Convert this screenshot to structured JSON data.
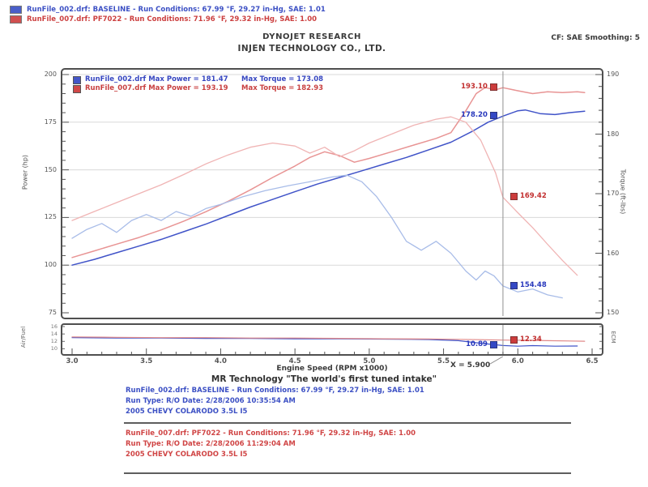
{
  "header": {
    "legend_top": [
      {
        "label": "RunFile_002.drf: BASELINE -  Run Conditions: 67.99 °F, 29.27 in-Hg, SAE: 1.01"
      },
      {
        "label": "RunFile_007.drf: PF7022 -  Run Conditions: 71.96 °F, 29.32 in-Hg, SAE: 1.00"
      }
    ],
    "title_line1": "DYNOJET RESEARCH",
    "title_line2": "INJEN TECHNOLOGY CO., LTD.",
    "cf_label": "CF: SAE  Smoothing: 5"
  },
  "chart_data": {
    "type": "line",
    "xlabel": "Engine Speed (RPM x1000)",
    "xlim": [
      3.0,
      6.5
    ],
    "x_ticks": [
      3.0,
      3.5,
      4.0,
      4.5,
      5.0,
      5.5,
      6.0,
      6.5
    ],
    "axes": {
      "power": {
        "label": "Power (hp)",
        "lim": [
          75,
          200
        ],
        "ticks": [
          75,
          100,
          125,
          150,
          175,
          200
        ],
        "side": "left"
      },
      "torque": {
        "label": "Torque (ft-lbs)",
        "lim": [
          150,
          190
        ],
        "ticks": [
          150,
          160,
          170,
          180,
          190
        ],
        "side": "right"
      },
      "afr": {
        "label": "Air/Fuel",
        "right_label": "ECM",
        "lim": [
          9,
          16
        ],
        "ticks": [
          16,
          14,
          12,
          10
        ],
        "side": "left"
      }
    },
    "palette": {
      "blue": "#4053c8",
      "blue_light": "#a8bce8",
      "red": "#e89494",
      "red_light": "#f0b4b4",
      "afr_blue": "#4053c8",
      "afr_red": "#e08888",
      "grid": "#d9d9d9",
      "cursor": "#909090"
    },
    "legend": [
      {
        "name": "RunFile_002.drf",
        "power_text": "RunFile_002.drf Max Power = 181.47",
        "torque_text": "Max Torque = 173.08",
        "color": "blue"
      },
      {
        "name": "RunFile_007.drf",
        "power_text": "RunFile_007.drf Max Power = 193.19",
        "torque_text": "Max Torque = 182.93",
        "color": "red"
      }
    ],
    "cursor": {
      "x": 5.9,
      "label": "X = 5.900"
    },
    "readouts": [
      {
        "text": "193.10",
        "value": 193.1,
        "axis": "power",
        "chart": "main",
        "color": "red",
        "side": "left"
      },
      {
        "text": "178.20",
        "value": 178.2,
        "axis": "power",
        "chart": "main",
        "color": "blue",
        "side": "left"
      },
      {
        "text": "169.42",
        "value": 169.42,
        "axis": "torque",
        "chart": "main",
        "color": "red",
        "side": "right"
      },
      {
        "text": "154.48",
        "value": 154.48,
        "axis": "torque",
        "chart": "main",
        "color": "blue",
        "side": "right"
      },
      {
        "text": "10.89",
        "value": 10.89,
        "axis": "afr",
        "chart": "strip",
        "color": "blue",
        "side": "left"
      },
      {
        "text": "12.34",
        "value": 12.34,
        "axis": "afr",
        "chart": "strip",
        "color": "red",
        "side": "right"
      }
    ],
    "series": [
      {
        "name": "baseline_power",
        "axis": "power",
        "chart": "main",
        "color": "#4053c8",
        "width": 1.5,
        "points": [
          [
            3.0,
            100
          ],
          [
            3.15,
            103
          ],
          [
            3.3,
            106.5
          ],
          [
            3.45,
            110
          ],
          [
            3.6,
            113.5
          ],
          [
            3.75,
            117.5
          ],
          [
            3.9,
            121.5
          ],
          [
            4.05,
            126
          ],
          [
            4.2,
            130.5
          ],
          [
            4.35,
            134.5
          ],
          [
            4.5,
            138.5
          ],
          [
            4.65,
            142.5
          ],
          [
            4.8,
            146
          ],
          [
            4.95,
            149.5
          ],
          [
            5.1,
            153
          ],
          [
            5.25,
            156.5
          ],
          [
            5.4,
            160.5
          ],
          [
            5.55,
            164.5
          ],
          [
            5.7,
            170.5
          ],
          [
            5.8,
            175
          ],
          [
            5.9,
            178.2
          ],
          [
            6.0,
            181
          ],
          [
            6.05,
            181.4
          ],
          [
            6.15,
            179.5
          ],
          [
            6.25,
            179
          ],
          [
            6.35,
            180
          ],
          [
            6.45,
            180.8
          ]
        ]
      },
      {
        "name": "injen_power",
        "axis": "power",
        "chart": "main",
        "color": "#e89494",
        "width": 1.5,
        "points": [
          [
            3.0,
            104
          ],
          [
            3.15,
            107.5
          ],
          [
            3.3,
            111
          ],
          [
            3.45,
            114.5
          ],
          [
            3.6,
            118.5
          ],
          [
            3.75,
            123
          ],
          [
            3.9,
            128
          ],
          [
            4.05,
            133.5
          ],
          [
            4.2,
            139.5
          ],
          [
            4.35,
            146
          ],
          [
            4.5,
            152
          ],
          [
            4.6,
            156.5
          ],
          [
            4.7,
            159.5
          ],
          [
            4.8,
            157.5
          ],
          [
            4.9,
            154
          ],
          [
            5.0,
            156
          ],
          [
            5.15,
            159.5
          ],
          [
            5.3,
            163
          ],
          [
            5.45,
            166.5
          ],
          [
            5.55,
            169.5
          ],
          [
            5.65,
            181
          ],
          [
            5.72,
            190
          ],
          [
            5.78,
            193.2
          ],
          [
            5.85,
            192
          ],
          [
            5.9,
            193.1
          ],
          [
            6.0,
            191.5
          ],
          [
            6.1,
            190
          ],
          [
            6.2,
            191
          ],
          [
            6.3,
            190.5
          ],
          [
            6.4,
            191
          ],
          [
            6.45,
            190.5
          ]
        ]
      },
      {
        "name": "baseline_torque",
        "axis": "torque",
        "chart": "main",
        "color": "#a8bce8",
        "width": 1.3,
        "points": [
          [
            3.0,
            162.5
          ],
          [
            3.1,
            164
          ],
          [
            3.2,
            165
          ],
          [
            3.3,
            163.5
          ],
          [
            3.4,
            165.5
          ],
          [
            3.5,
            166.5
          ],
          [
            3.6,
            165.5
          ],
          [
            3.7,
            167
          ],
          [
            3.8,
            166.2
          ],
          [
            3.9,
            167.5
          ],
          [
            4.0,
            168.2
          ],
          [
            4.15,
            169.5
          ],
          [
            4.3,
            170.5
          ],
          [
            4.45,
            171.3
          ],
          [
            4.6,
            172
          ],
          [
            4.75,
            172.8
          ],
          [
            4.85,
            173.1
          ],
          [
            4.95,
            172
          ],
          [
            5.05,
            169.5
          ],
          [
            5.15,
            166
          ],
          [
            5.25,
            162
          ],
          [
            5.35,
            160.5
          ],
          [
            5.45,
            162
          ],
          [
            5.55,
            160
          ],
          [
            5.65,
            157
          ],
          [
            5.72,
            155.5
          ],
          [
            5.78,
            157
          ],
          [
            5.84,
            156.2
          ],
          [
            5.9,
            154.5
          ],
          [
            6.0,
            153.5
          ],
          [
            6.1,
            154
          ],
          [
            6.2,
            153
          ],
          [
            6.3,
            152.5
          ]
        ]
      },
      {
        "name": "injen_torque",
        "axis": "torque",
        "chart": "main",
        "color": "#f0b4b4",
        "width": 1.3,
        "points": [
          [
            3.0,
            165.5
          ],
          [
            3.15,
            167
          ],
          [
            3.3,
            168.5
          ],
          [
            3.45,
            170
          ],
          [
            3.6,
            171.5
          ],
          [
            3.75,
            173.2
          ],
          [
            3.9,
            175
          ],
          [
            4.05,
            176.5
          ],
          [
            4.2,
            177.8
          ],
          [
            4.35,
            178.5
          ],
          [
            4.5,
            178
          ],
          [
            4.6,
            176.8
          ],
          [
            4.7,
            177.8
          ],
          [
            4.8,
            176.2
          ],
          [
            4.9,
            177.2
          ],
          [
            5.0,
            178.5
          ],
          [
            5.15,
            180
          ],
          [
            5.3,
            181.5
          ],
          [
            5.45,
            182.5
          ],
          [
            5.55,
            182.9
          ],
          [
            5.65,
            182
          ],
          [
            5.75,
            179
          ],
          [
            5.85,
            173.5
          ],
          [
            5.9,
            169.4
          ],
          [
            6.0,
            166.8
          ],
          [
            6.1,
            164.3
          ],
          [
            6.2,
            161.5
          ],
          [
            6.3,
            158.8
          ],
          [
            6.4,
            156.3
          ]
        ]
      },
      {
        "name": "baseline_afr",
        "axis": "afr",
        "chart": "strip",
        "color": "#4053c8",
        "width": 1.2,
        "points": [
          [
            3.0,
            13.0
          ],
          [
            3.3,
            12.9
          ],
          [
            3.6,
            12.9
          ],
          [
            3.9,
            12.8
          ],
          [
            4.2,
            12.8
          ],
          [
            4.5,
            12.7
          ],
          [
            4.8,
            12.7
          ],
          [
            5.1,
            12.6
          ],
          [
            5.4,
            12.5
          ],
          [
            5.6,
            12.2
          ],
          [
            5.75,
            11.5
          ],
          [
            5.9,
            10.89
          ],
          [
            6.0,
            10.7
          ],
          [
            6.1,
            10.85
          ],
          [
            6.25,
            10.7
          ],
          [
            6.4,
            10.75
          ]
        ]
      },
      {
        "name": "injen_afr",
        "axis": "afr",
        "chart": "strip",
        "color": "#e08888",
        "width": 1.2,
        "points": [
          [
            3.0,
            13.2
          ],
          [
            3.3,
            13.1
          ],
          [
            3.6,
            13.0
          ],
          [
            3.9,
            13.0
          ],
          [
            4.2,
            12.9
          ],
          [
            4.5,
            12.9
          ],
          [
            4.8,
            12.8
          ],
          [
            5.1,
            12.7
          ],
          [
            5.4,
            12.65
          ],
          [
            5.6,
            12.55
          ],
          [
            5.75,
            12.45
          ],
          [
            5.9,
            12.34
          ],
          [
            6.05,
            12.3
          ],
          [
            6.2,
            12.2
          ],
          [
            6.35,
            12.1
          ],
          [
            6.45,
            12.05
          ]
        ]
      }
    ]
  },
  "footer": {
    "tagline": "MR Technology \"The world's first tuned intake\"",
    "runs": [
      {
        "color": "blue",
        "lines": [
          "RunFile_002.drf: BASELINE -  Run Conditions: 67.99 °F, 29.27 in-Hg, SAE: 1.01",
          "Run Type: R/O  Date: 2/28/2006 10:35:54 AM",
          "2005 CHEVY COLARODO 3.5L I5"
        ]
      },
      {
        "color": "red",
        "lines": [
          "RunFile_007.drf: PF7022 -  Run Conditions: 71.96 °F, 29.32 in-Hg, SAE: 1.00",
          "Run Type: R/O  Date: 2/28/2006 11:29:04 AM",
          "2005 CHEVY COLARODO 3.5L I5"
        ]
      }
    ]
  }
}
